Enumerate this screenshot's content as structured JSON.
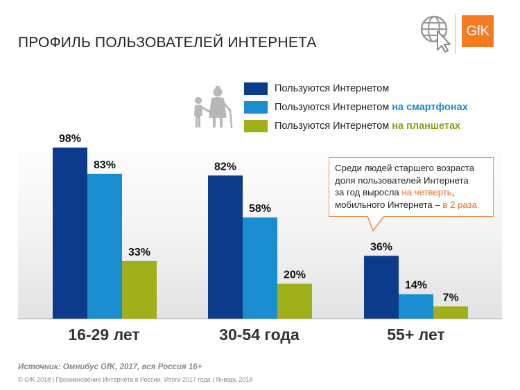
{
  "header": {
    "title": "ПРОФИЛЬ ПОЛЬЗОВАТЕЛЕЙ ИНТЕРНЕТА",
    "logo_text": "GfK"
  },
  "legend": [
    {
      "text": "Пользуются Интернетом",
      "highlight": "",
      "color": "#0d3b8c",
      "highlight_color": ""
    },
    {
      "text": "Пользуются Интернетом ",
      "highlight": "на смартфонах",
      "color": "#1a8cd0",
      "highlight_color": "#1a8cd0"
    },
    {
      "text": "Пользуются Интернетом ",
      "highlight": "на планшетах",
      "color": "#9fb01a",
      "highlight_color": "#8da014"
    }
  ],
  "callout": {
    "line1": "Среди людей старшего возраста",
    "line2": "доля пользователей Интернета",
    "line3_prefix": "за год выросла ",
    "line3_highlight": "на четверть",
    "line3_suffix": ",",
    "line4_prefix": "мобильного Интернета – ",
    "line4_highlight": "в 2 раза"
  },
  "chart_data": {
    "type": "bar",
    "title": "ПРОФИЛЬ ПОЛЬЗОВАТЕЛЕЙ ИНТЕРНЕТА",
    "categories": [
      "16-29 лет",
      "30-54 года",
      "55+ лет"
    ],
    "series": [
      {
        "name": "Пользуются Интернетом",
        "values": [
          98,
          82,
          36
        ],
        "labels": [
          "98%",
          "82%",
          "36%"
        ],
        "color": "#0d3b8c"
      },
      {
        "name": "Пользуются Интернетом на смартфонах",
        "values": [
          83,
          58,
          14
        ],
        "labels": [
          "83%",
          "58%",
          "14%"
        ],
        "color": "#1a8cd0"
      },
      {
        "name": "Пользуются Интернетом на планшетах",
        "values": [
          33,
          20,
          7
        ],
        "labels": [
          "33%",
          "20%",
          "7%"
        ],
        "color": "#9fb01a"
      }
    ],
    "ylim": [
      0,
      100
    ],
    "xlabel": "",
    "ylabel": "",
    "grid": false,
    "legend_position": "top-right"
  },
  "source": "Источник: Омнибус GfK, 2017, вся Россия 16+",
  "footer": "© GfK 2018 | Проникновение Интернета в России: Итоги 2017 года | Январь 2018"
}
